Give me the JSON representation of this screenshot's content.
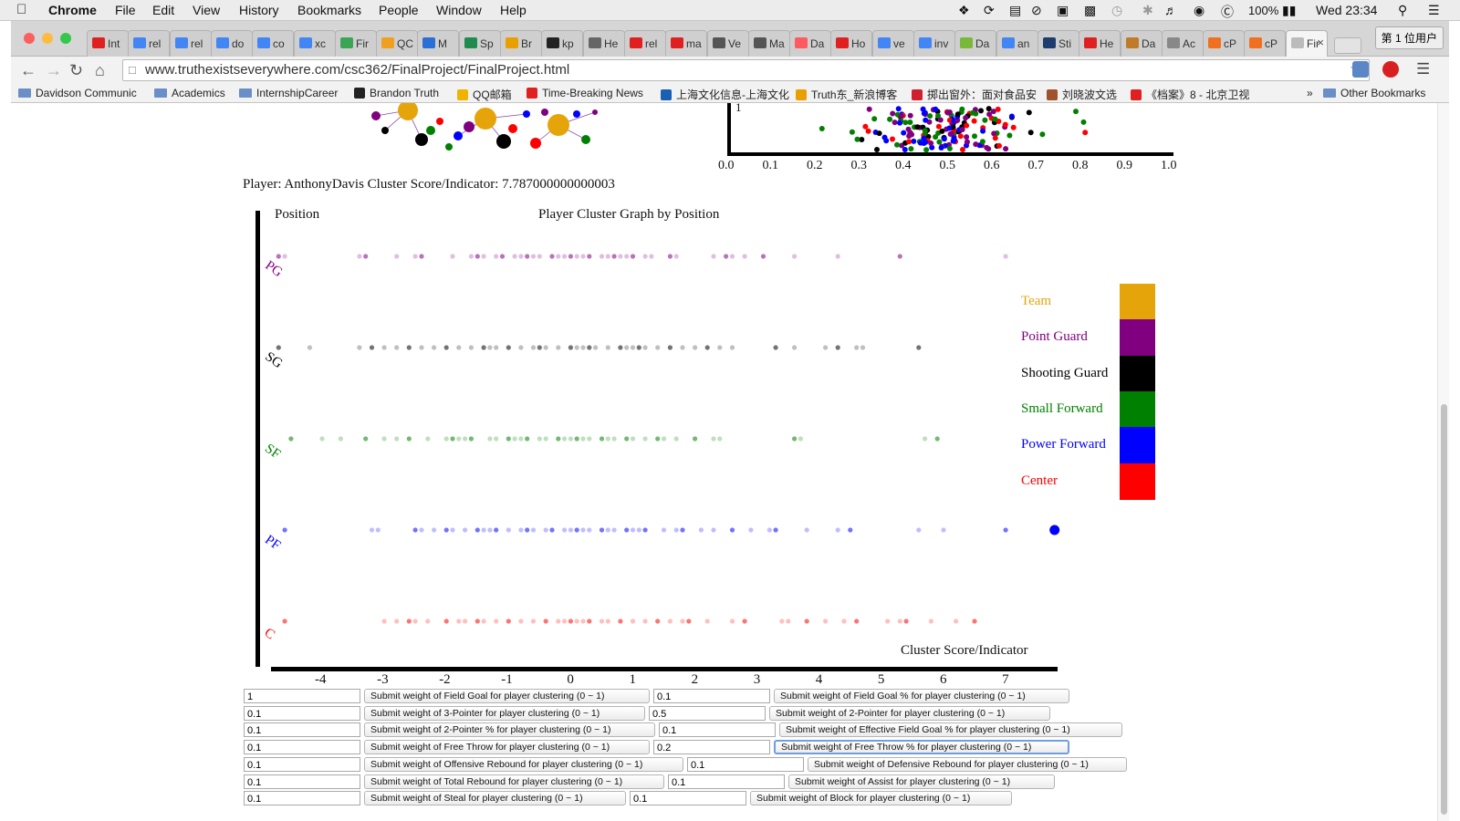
{
  "menubar": {
    "app": "Chrome",
    "menus": [
      "File",
      "Edit",
      "View",
      "History",
      "Bookmarks",
      "People",
      "Window",
      "Help"
    ],
    "battery": "100%",
    "clock": "Wed 23:34"
  },
  "tabs": [
    {
      "label": "Int",
      "color": "#e02020",
      "icon": "youtube-icon"
    },
    {
      "label": "rel",
      "color": "#4285f4",
      "icon": "google-icon"
    },
    {
      "label": "rel",
      "color": "#4285f4",
      "icon": "google-icon"
    },
    {
      "label": "do",
      "color": "#4285f4",
      "icon": "google-icon"
    },
    {
      "label": "co",
      "color": "#4285f4",
      "icon": "google-icon"
    },
    {
      "label": "xc",
      "color": "#4285f4",
      "icon": "google-icon"
    },
    {
      "label": "Fir",
      "color": "#3aa655",
      "icon": "u-icon"
    },
    {
      "label": "QC",
      "color": "#f0a020",
      "icon": "chrome-icon"
    },
    {
      "label": "M",
      "color": "#2a6fd6",
      "icon": "mail-icon"
    },
    {
      "label": "Sp",
      "color": "#1f8b4c",
      "icon": "sheets-icon"
    },
    {
      "label": "Br",
      "color": "#e8a000",
      "icon": "b-icon"
    },
    {
      "label": "kp",
      "color": "#222222",
      "icon": "github-icon"
    },
    {
      "label": "He",
      "color": "#666666",
      "icon": "reddit-icon"
    },
    {
      "label": "rel",
      "color": "#e02020",
      "icon": "youtube-icon"
    },
    {
      "label": "ma",
      "color": "#e02020",
      "icon": "youtube-icon"
    },
    {
      "label": "Ve",
      "color": "#555555",
      "icon": "wikipedia-icon"
    },
    {
      "label": "Ma",
      "color": "#555555",
      "icon": "wikipedia-icon"
    },
    {
      "label": "Da",
      "color": "#ff5a5f",
      "icon": "airbnb-icon"
    },
    {
      "label": "Ho",
      "color": "#e02020",
      "icon": "youtube-icon"
    },
    {
      "label": "ve",
      "color": "#4285f4",
      "icon": "google-icon"
    },
    {
      "label": "inv",
      "color": "#4285f4",
      "icon": "google-icon"
    },
    {
      "label": "Da",
      "color": "#78b93a",
      "icon": "d-icon"
    },
    {
      "label": "an",
      "color": "#4285f4",
      "icon": "google-icon"
    },
    {
      "label": "Sti",
      "color": "#1c3d6e",
      "icon": "st-icon"
    },
    {
      "label": "He",
      "color": "#e02020",
      "icon": "youtube-icon"
    },
    {
      "label": "Da",
      "color": "#c07a2a",
      "icon": "davidson-icon"
    },
    {
      "label": "Ac",
      "color": "#888888",
      "icon": "page-icon"
    },
    {
      "label": "cP",
      "color": "#f07020",
      "icon": "cpanel-icon"
    },
    {
      "label": "cP",
      "color": "#f07020",
      "icon": "cpanel-icon"
    },
    {
      "label": "Fir",
      "color": "#bbbbbb",
      "icon": "page-icon"
    }
  ],
  "profile_button": "第 1 位用户",
  "url": "www.truthexistseverywhere.com/csc362/FinalProject/FinalProject.html",
  "bookmarks": [
    {
      "label": "Davidson Communic",
      "type": "folder",
      "color": "#6a8fc7"
    },
    {
      "label": "Academics",
      "type": "folder",
      "color": "#6a8fc7"
    },
    {
      "label": "InternshipCareer",
      "type": "folder",
      "color": "#6a8fc7"
    },
    {
      "label": "Brandon Truth",
      "type": "link",
      "color": "#222222"
    },
    {
      "label": "QQ邮箱",
      "type": "link",
      "color": "#f0b400"
    },
    {
      "label": "Time-Breaking News",
      "type": "link",
      "color": "#e02020"
    },
    {
      "label": "上海文化信息-上海文化",
      "type": "link",
      "color": "#1a5fb4"
    },
    {
      "label": "Truth东_新浪博客",
      "type": "link",
      "color": "#e8a000"
    },
    {
      "label": "掷出窗外：面对食品安",
      "type": "link",
      "color": "#d02030"
    },
    {
      "label": "刘晓波文选",
      "type": "link",
      "color": "#a0522d"
    },
    {
      "label": "《档案》8 - 北京卫视",
      "type": "link",
      "color": "#e02020"
    }
  ],
  "other_bookmarks": "Other Bookmarks",
  "top_plot": {
    "x_ticks": [
      "0.0",
      "0.1",
      "0.2",
      "0.3",
      "0.4",
      "0.5",
      "0.6",
      "0.7",
      "0.8",
      "0.9",
      "1.0"
    ],
    "y_tick": "1"
  },
  "player_line": "Player: AnthonyDavis Cluster Score/Indicator: 7.787000000000003",
  "chart_data": {
    "type": "scatter",
    "title": "Player Cluster Graph by Position",
    "ylabel": "Position",
    "xlabel": "Cluster Score/Indicator",
    "x_ticks": [
      -4,
      -3,
      -2,
      -1,
      0,
      1,
      2,
      3,
      4,
      5,
      6,
      7
    ],
    "xlim": [
      -4.6,
      7.5
    ],
    "categories": [
      "PG",
      "SG",
      "SF",
      "PF",
      "C"
    ],
    "legend": [
      {
        "label": "Team",
        "color": "#e5a50a"
      },
      {
        "label": "Point Guard",
        "color": "#800080"
      },
      {
        "label": "Shooting Guard",
        "color": "#000000"
      },
      {
        "label": "Small Forward",
        "color": "#008000"
      },
      {
        "label": "Power Forward",
        "color": "#0000ff"
      },
      {
        "label": "Center",
        "color": "#ff0000"
      }
    ],
    "legend_position": "right",
    "highlight": {
      "position": "PF",
      "x": 7.787,
      "label": "AnthonyDavis"
    },
    "series": [
      {
        "name": "PG",
        "color": "#800080",
        "x": [
          -4.7,
          -4.6,
          -3.4,
          -3.3,
          -2.8,
          -2.5,
          -2.4,
          -1.9,
          -1.6,
          -1.5,
          -1.4,
          -1.2,
          -1.1,
          -0.9,
          -0.8,
          -0.7,
          -0.6,
          -0.5,
          -0.3,
          -0.2,
          -0.1,
          0.0,
          0.1,
          0.2,
          0.3,
          0.5,
          0.6,
          0.7,
          0.8,
          0.9,
          1.0,
          1.2,
          1.3,
          1.6,
          1.7,
          2.3,
          2.5,
          2.6,
          2.8,
          3.1,
          3.6,
          4.3,
          5.3,
          7.0
        ]
      },
      {
        "name": "SG",
        "color": "#000000",
        "x": [
          -4.7,
          -4.2,
          -3.4,
          -3.2,
          -3.0,
          -2.8,
          -2.6,
          -2.4,
          -2.2,
          -2.0,
          -1.8,
          -1.6,
          -1.4,
          -1.3,
          -1.2,
          -1.0,
          -0.8,
          -0.6,
          -0.5,
          -0.4,
          -0.2,
          0.0,
          0.1,
          0.2,
          0.3,
          0.4,
          0.6,
          0.8,
          0.9,
          1.0,
          1.1,
          1.2,
          1.4,
          1.6,
          1.8,
          2.0,
          2.2,
          2.4,
          2.6,
          3.3,
          3.6,
          4.1,
          4.3,
          4.6,
          4.7,
          5.6
        ]
      },
      {
        "name": "SF",
        "color": "#008000",
        "x": [
          -4.5,
          -4.0,
          -3.7,
          -3.3,
          -3.0,
          -2.8,
          -2.6,
          -2.3,
          -2.0,
          -1.9,
          -1.8,
          -1.7,
          -1.6,
          -1.3,
          -1.2,
          -1.0,
          -0.9,
          -0.8,
          -0.7,
          -0.5,
          -0.4,
          -0.2,
          -0.1,
          0.0,
          0.1,
          0.2,
          0.3,
          0.5,
          0.6,
          0.7,
          0.9,
          1.0,
          1.2,
          1.4,
          1.5,
          1.7,
          2.0,
          2.3,
          2.4,
          3.6,
          3.7,
          5.7,
          5.9
        ]
      },
      {
        "name": "PF",
        "color": "#0000ff",
        "x": [
          -4.6,
          -3.2,
          -3.1,
          -2.5,
          -2.4,
          -2.2,
          -2.0,
          -1.9,
          -1.7,
          -1.5,
          -1.4,
          -1.3,
          -1.2,
          -1.0,
          -0.8,
          -0.7,
          -0.6,
          -0.4,
          -0.3,
          -0.1,
          0.0,
          0.1,
          0.2,
          0.3,
          0.5,
          0.6,
          0.7,
          0.9,
          1.0,
          1.1,
          1.2,
          1.5,
          1.7,
          1.8,
          2.1,
          2.3,
          2.6,
          2.9,
          3.2,
          3.3,
          3.8,
          4.3,
          4.5,
          5.6,
          6.0,
          7.0
        ]
      },
      {
        "name": "C",
        "color": "#ff0000",
        "x": [
          -4.6,
          -3.0,
          -2.8,
          -2.6,
          -2.5,
          -2.3,
          -2.0,
          -1.8,
          -1.7,
          -1.5,
          -1.4,
          -1.2,
          -1.0,
          -0.8,
          -0.6,
          -0.4,
          -0.2,
          -0.1,
          0.0,
          0.1,
          0.2,
          0.3,
          0.5,
          0.6,
          0.8,
          1.0,
          1.2,
          1.4,
          1.6,
          1.8,
          1.9,
          2.2,
          2.6,
          2.8,
          3.4,
          3.5,
          3.8,
          4.1,
          4.4,
          4.6,
          5.1,
          5.3,
          5.4,
          5.8,
          6.2,
          6.5
        ]
      }
    ]
  },
  "weights": [
    [
      {
        "value": "1",
        "button": "Submit weight of Field Goal for player clustering (0 ~ 1)"
      },
      {
        "value": "0.1",
        "button": "Submit weight of Field Goal % for player clustering (0 ~ 1)"
      }
    ],
    [
      {
        "value": "0.1",
        "button": "Submit weight of 3-Pointer for player clustering (0 ~ 1)"
      },
      {
        "value": "0.5",
        "button": "Submit weight of 2-Pointer for player clustering (0 ~ 1)"
      }
    ],
    [
      {
        "value": "0.1",
        "button": "Submit weight of 2-Pointer % for player clustering (0 ~ 1)"
      },
      {
        "value": "0.1",
        "button": "Submit weight of Effective Field Goal % for player clustering (0 ~ 1)"
      }
    ],
    [
      {
        "value": "0.1",
        "button": "Submit weight of Free Throw for player clustering (0 ~ 1)"
      },
      {
        "value": "0.2",
        "button": "Submit weight of Free Throw % for player clustering (0 ~ 1)"
      }
    ],
    [
      {
        "value": "0.1",
        "button": "Submit weight of Offensive Rebound for player clustering (0 ~ 1)"
      },
      {
        "value": "0.1",
        "button": "Submit weight of Defensive Rebound for player clustering (0 ~ 1)"
      }
    ],
    [
      {
        "value": "0.1",
        "button": "Submit weight of Total Rebound for player clustering (0 ~ 1)"
      },
      {
        "value": "0.1",
        "button": "Submit weight of Assist for player clustering (0 ~ 1)"
      }
    ],
    [
      {
        "value": "0.1",
        "button": "Submit weight of Steal for player clustering (0 ~ 1)"
      },
      {
        "value": "0.1",
        "button": "Submit weight of Block for player clustering (0 ~ 1)"
      }
    ]
  ]
}
